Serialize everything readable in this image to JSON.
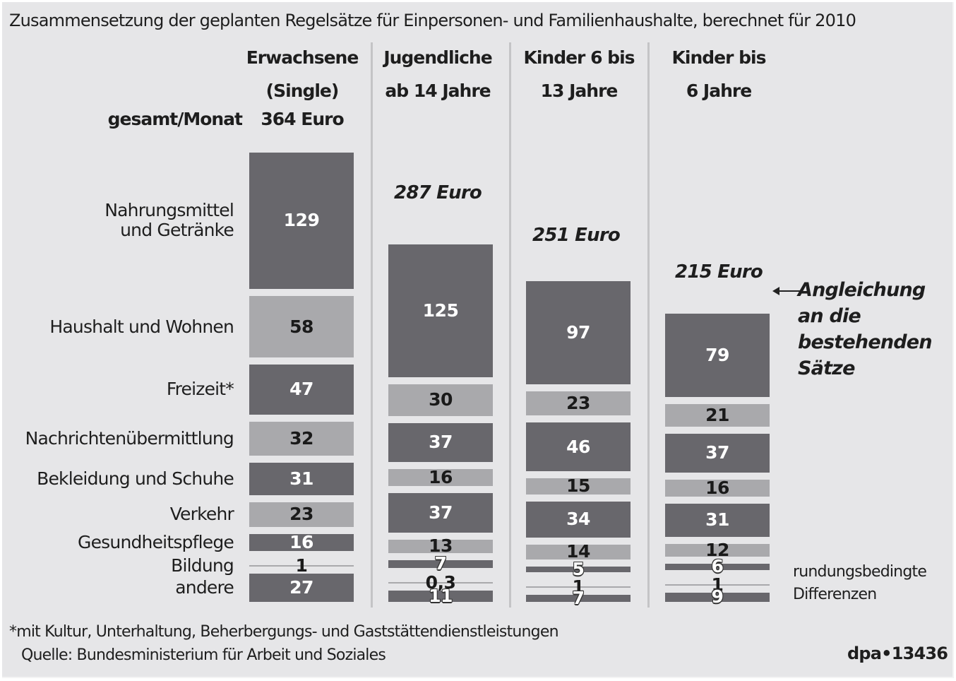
{
  "chart_data": {
    "type": "bar",
    "subtype": "stacked-blocks",
    "title": "Zusammensetzung der geplanten Regelsätze für Einpersonen- und Familienhaushalte, berechnet für 2010",
    "total_label": "gesamt/Monat",
    "unit": "Euro",
    "categories": [
      "Nahrungsmittel und Getränke",
      "Haushalt und Wohnen",
      "Freizeit*",
      "Nachrichtenübermittlung",
      "Bekleidung und Schuhe",
      "Verkehr",
      "Gesundheitspflege",
      "Bildung",
      "andere"
    ],
    "series": [
      {
        "name": "Erwachsene (Single)",
        "head": [
          "Erwachsene",
          "(Single)"
        ],
        "total": "364 Euro",
        "values": [
          129,
          58,
          47,
          32,
          31,
          23,
          16,
          1,
          27
        ],
        "labels": [
          "129",
          "58",
          "47",
          "32",
          "31",
          "23",
          "16",
          "1",
          "27"
        ]
      },
      {
        "name": "Jugendliche ab 14 Jahre",
        "head": [
          "Jugendliche",
          "ab 14 Jahre"
        ],
        "total": "287 Euro",
        "values": [
          125,
          30,
          37,
          16,
          37,
          13,
          7,
          0.3,
          11
        ],
        "labels": [
          "125",
          "30",
          "37",
          "16",
          "37",
          "13",
          "7",
          "0,3",
          "11"
        ]
      },
      {
        "name": "Kinder 6 bis 13 Jahre",
        "head": [
          "Kinder 6 bis",
          "13 Jahre"
        ],
        "total": "251 Euro",
        "values": [
          97,
          23,
          46,
          15,
          34,
          14,
          5,
          1,
          7
        ],
        "labels": [
          "97",
          "23",
          "46",
          "15",
          "34",
          "14",
          "5",
          "1",
          "7"
        ]
      },
      {
        "name": "Kinder bis 6 Jahre",
        "head": [
          "Kinder bis",
          "6 Jahre"
        ],
        "total": "215 Euro",
        "values": [
          79,
          21,
          37,
          16,
          31,
          12,
          6,
          1,
          9
        ],
        "labels": [
          "79",
          "21",
          "37",
          "16",
          "31",
          "12",
          "6",
          "1",
          "9"
        ]
      }
    ],
    "category_labels": [
      [
        "Nahrungsmittel",
        "und Getränke"
      ],
      [
        "Haushalt und Wohnen"
      ],
      [
        "Freizeit*"
      ],
      [
        "Nachrichtenübermittlung"
      ],
      [
        "Bekleidung und Schuhe"
      ],
      [
        "Verkehr"
      ],
      [
        "Gesundheitspflege"
      ],
      [
        "Bildung"
      ],
      [
        "andere"
      ]
    ],
    "annotations": {
      "angleichung": [
        "Angleichung",
        "an die",
        "bestehenden",
        "Sätze"
      ],
      "rundung": [
        "rundungsbedingte",
        "Differenzen"
      ]
    },
    "footnote": "*mit Kultur, Unterhaltung, Beherbergungs- und Gaststättendienstleistungen",
    "source": "Quelle: Bundesministerium für Arbeit und Soziales",
    "credit": "dpa•13436",
    "colors": {
      "background": "#e6e6e8",
      "dark_block": "#68676c",
      "light_block": "#a9a9ac",
      "text": "#1e1e1e"
    }
  }
}
